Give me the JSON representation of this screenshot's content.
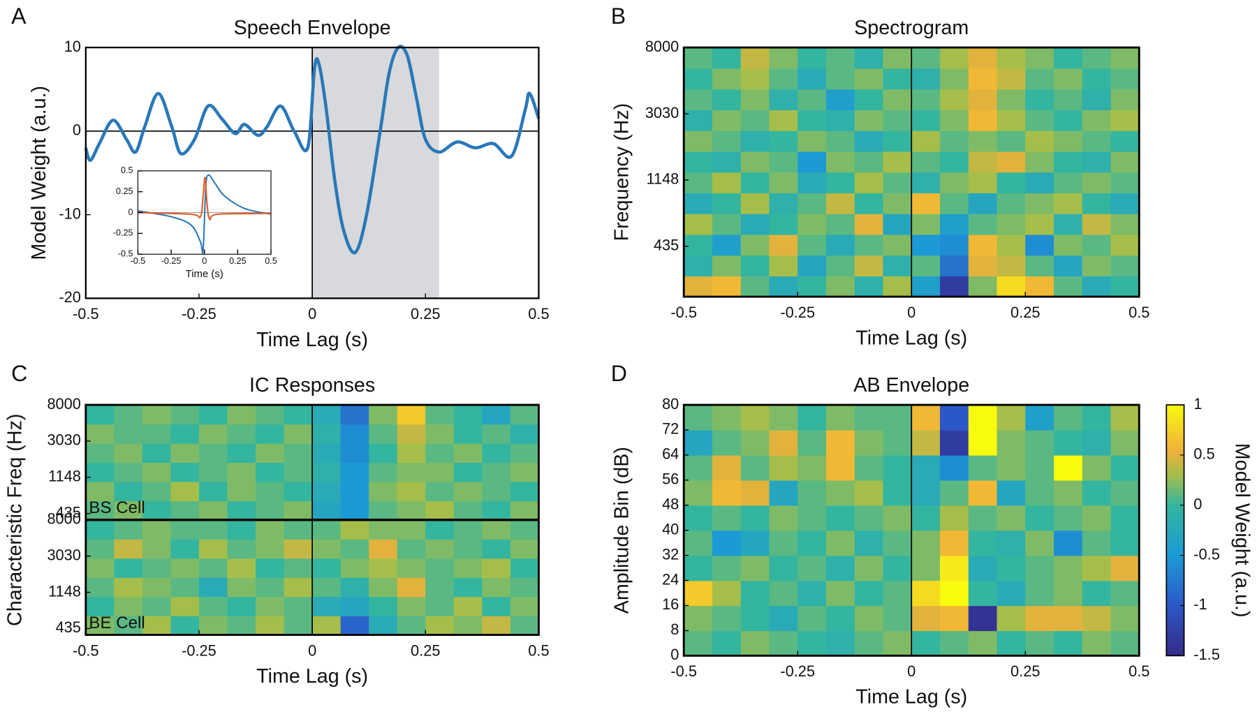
{
  "chart_data": [
    {
      "type": "line",
      "panel_label": "A",
      "title": "Speech Envelope",
      "xlabel": "Time Lag (s)",
      "ylabel": "Model Weight (a.u.)",
      "xlim": [
        -0.5,
        0.5
      ],
      "ylim": [
        -20,
        10
      ],
      "xticks": [
        -0.5,
        -0.25,
        0,
        0.25,
        0.5
      ],
      "yticks": [
        -20,
        -10,
        0,
        10
      ],
      "shade": [
        0,
        0.28
      ],
      "x": [
        -0.5,
        -0.49,
        -0.47,
        -0.44,
        -0.41,
        -0.39,
        -0.37,
        -0.34,
        -0.31,
        -0.29,
        -0.26,
        -0.23,
        -0.2,
        -0.17,
        -0.15,
        -0.12,
        -0.1,
        -0.07,
        -0.04,
        -0.01,
        0.005,
        0.015,
        0.03,
        0.05,
        0.07,
        0.095,
        0.12,
        0.15,
        0.17,
        0.19,
        0.21,
        0.23,
        0.25,
        0.28,
        0.32,
        0.36,
        0.4,
        0.44,
        0.47,
        0.48,
        0.5
      ],
      "series": [
        {
          "color": "#2a78b8",
          "values": [
            -2,
            -3.5,
            -1.5,
            1.3,
            -1,
            -2.5,
            0.5,
            4.5,
            0.5,
            -2.7,
            -1,
            3,
            1.5,
            -0.3,
            0.8,
            -0.5,
            0.5,
            3,
            0,
            -2,
            7.5,
            8,
            3,
            -6,
            -12,
            -14.5,
            -10,
            0,
            7,
            10,
            9,
            4,
            -1,
            -2.5,
            -1.3,
            -2,
            -1.5,
            -3,
            2.5,
            4.5,
            1.5
          ]
        }
      ],
      "inset": {
        "type": "line",
        "xlabel": "Time (s)",
        "xlim": [
          -0.5,
          0.5
        ],
        "ylim": [
          -0.5,
          0.5
        ],
        "xticks": [
          -0.5,
          -0.25,
          0,
          0.25,
          0.5
        ],
        "yticks": [
          -0.5,
          -0.25,
          0,
          0.25,
          0.5
        ],
        "series": [
          {
            "color": "#2a78b8",
            "x": [
              -0.5,
              -0.25,
              -0.1,
              -0.03,
              -0.01,
              0.01,
              0.03,
              0.08,
              0.15,
              0.3,
              0.5
            ],
            "values": [
              0.02,
              -0.05,
              -0.15,
              -0.35,
              -0.45,
              0.3,
              0.45,
              0.35,
              0.2,
              0.05,
              -0.02
            ]
          },
          {
            "color": "#e05a2b",
            "x": [
              -0.5,
              -0.1,
              -0.03,
              -0.01,
              0.005,
              0.02,
              0.04,
              0.1,
              0.5
            ],
            "values": [
              0,
              -0.02,
              -0.05,
              0.2,
              0.42,
              0.1,
              -0.08,
              -0.02,
              -0.01
            ]
          }
        ]
      }
    },
    {
      "type": "heatmap",
      "panel_label": "B",
      "title": "Spectrogram",
      "xlabel": "Time Lag (s)",
      "ylabel": "Frequency (Hz)",
      "xlim": [
        -0.5,
        0.5
      ],
      "ylim": [
        208,
        8000
      ],
      "log_y": true,
      "xticks": [
        -0.5,
        -0.25,
        0,
        0.25,
        0.5
      ],
      "yticks": [
        435,
        1148,
        3030,
        8000
      ],
      "values": [
        [
          0.5,
          0.6,
          0.1,
          -0.2,
          0,
          0.2,
          -0.1,
          0.3,
          -0.4,
          -1.3,
          0.2,
          0.8,
          0.6,
          0.1,
          -0.2,
          0
        ],
        [
          -0.1,
          0.2,
          0,
          0.3,
          -0.3,
          0.1,
          0.4,
          -0.1,
          0.1,
          -0.8,
          0.5,
          0.4,
          0.1,
          -0.3,
          0.2,
          0.1
        ],
        [
          0,
          -0.4,
          0.2,
          0.5,
          0.1,
          -0.2,
          0.1,
          0.2,
          -0.5,
          -0.6,
          0.6,
          0.3,
          -0.6,
          0.2,
          0.1,
          0.3
        ],
        [
          0.3,
          0.1,
          -0.2,
          0,
          0.2,
          0.1,
          0.5,
          -0.3,
          0.2,
          -0.4,
          0.1,
          0.2,
          0.3,
          -0.1,
          0.4,
          0.2
        ],
        [
          -0.2,
          0,
          0.3,
          -0.1,
          0.1,
          0.4,
          0,
          0.2,
          0.6,
          0.1,
          -0.3,
          0.1,
          0.2,
          0.3,
          0,
          -0.2
        ],
        [
          0.1,
          0.3,
          0,
          0.2,
          -0.2,
          0,
          0.3,
          0.1,
          -0.1,
          0.2,
          0.3,
          0,
          -0.2,
          0.1,
          0.2,
          0.1
        ],
        [
          0,
          -0.1,
          0.2,
          0.1,
          -0.5,
          0.2,
          0.1,
          0.3,
          0.1,
          0,
          0.4,
          0.5,
          0.2,
          0,
          -0.1,
          0.2
        ],
        [
          0.2,
          0.1,
          -0.1,
          0,
          0.2,
          0.1,
          -0.2,
          0,
          0.3,
          0.1,
          0.2,
          0.1,
          0.3,
          0.2,
          0.1,
          0
        ],
        [
          -0.1,
          0.2,
          0.1,
          0.3,
          0,
          -0.1,
          0.2,
          0.1,
          0,
          0.2,
          0.6,
          0.3,
          0.1,
          0,
          0.2,
          0.3
        ],
        [
          0.1,
          0,
          0.2,
          -0.1,
          0.1,
          -0.4,
          0,
          0.2,
          0.1,
          0.3,
          0.5,
          0.2,
          0,
          0.1,
          -0.1,
          0.2
        ],
        [
          0,
          0.2,
          0.3,
          0.1,
          -0.2,
          0.1,
          0.2,
          0,
          -0.1,
          0.2,
          0.6,
          0.4,
          0.1,
          0.2,
          0,
          0.1
        ],
        [
          0.1,
          0,
          0.4,
          0.2,
          0,
          0.1,
          -0.1,
          0.2,
          0.1,
          0.3,
          0.5,
          0.3,
          0.2,
          0,
          0.1,
          0.2
        ]
      ]
    },
    {
      "type": "heatmap",
      "panel_label": "C",
      "title": "IC Responses",
      "xlabel": "Time Lag (s)",
      "ylabel": "Characteristic Freq (Hz)",
      "xlim": [
        -0.5,
        0.5
      ],
      "ylim": [
        367,
        8000
      ],
      "log_y": true,
      "xticks": [
        -0.5,
        -0.25,
        0,
        0.25,
        0.5
      ],
      "yticks": [
        435,
        1148,
        3030,
        8000
      ],
      "panels": [
        {
          "label": "BS Cell",
          "values": [
            [
              0.1,
              0.2,
              0,
              0.1,
              0.2,
              0,
              0.1,
              0.2,
              -0.3,
              -0.5,
              0.1,
              0.2,
              0.3,
              0.1,
              0,
              0.2
            ],
            [
              0.2,
              0,
              0.1,
              0.3,
              0,
              0.2,
              0.1,
              0,
              -0.2,
              -0.5,
              0.2,
              0.3,
              0.1,
              0.2,
              0.1,
              0
            ],
            [
              0,
              0.1,
              0.2,
              0,
              0.1,
              0.2,
              0,
              0.1,
              -0.1,
              -0.5,
              0.1,
              0.2,
              0.2,
              0,
              0.1,
              0.2
            ],
            [
              0.1,
              0.2,
              0,
              0.2,
              0.1,
              0,
              0.2,
              0.1,
              -0.2,
              -0.6,
              0,
              0.3,
              0.1,
              0.2,
              0,
              0.1
            ],
            [
              0.2,
              0.1,
              0.1,
              0,
              0.2,
              0.1,
              0,
              0.2,
              -0.1,
              -0.6,
              0.1,
              0.4,
              0.2,
              0,
              0.1,
              -0.1
            ],
            [
              0,
              0.1,
              0.2,
              0.1,
              0,
              0.2,
              0.1,
              0,
              -0.2,
              -0.8,
              0.2,
              0.7,
              0.1,
              0,
              -0.3,
              0.1
            ]
          ]
        },
        {
          "label": "BE Cell",
          "values": [
            [
              0.2,
              0.1,
              0.3,
              0,
              0.2,
              0.1,
              0.3,
              0.1,
              0.3,
              -0.9,
              -0.2,
              0.1,
              0.3,
              0.2,
              0.4,
              0.1
            ],
            [
              0,
              0.2,
              0.1,
              0.3,
              0.1,
              0,
              0.2,
              0.1,
              -0.2,
              -0.3,
              0,
              0.2,
              0.1,
              0.3,
              0,
              0.2
            ],
            [
              0.1,
              0.3,
              0.2,
              0.1,
              -0.2,
              0.2,
              0.1,
              0.3,
              0.1,
              -0.1,
              0.2,
              0.5,
              0.1,
              0,
              0.2,
              0.1
            ],
            [
              0.2,
              0,
              0.1,
              0.2,
              0.1,
              0.3,
              0,
              0.1,
              0,
              0.2,
              0.3,
              0.2,
              0.1,
              0.2,
              0.3,
              0
            ],
            [
              0.1,
              0.4,
              0.2,
              0,
              0.3,
              0.1,
              0.2,
              0.4,
              0.2,
              0.1,
              0.5,
              0.1,
              0.2,
              0.1,
              0,
              0.2
            ],
            [
              0,
              0.1,
              0.2,
              0.1,
              0.1,
              0,
              0.2,
              0.1,
              0.1,
              0.3,
              0.2,
              0.2,
              0,
              0.1,
              0.2,
              0.1
            ]
          ]
        }
      ]
    },
    {
      "type": "heatmap",
      "panel_label": "D",
      "title": "AB Envelope",
      "xlabel": "Time Lag (s)",
      "ylabel": "Amplitude Bin (dB)",
      "xlim": [
        -0.5,
        0.5
      ],
      "ylim": [
        0,
        80
      ],
      "xticks": [
        -0.5,
        -0.25,
        0,
        0.25,
        0.5
      ],
      "yticks": [
        0,
        8,
        16,
        24,
        32,
        40,
        48,
        56,
        64,
        72,
        80
      ],
      "values": [
        [
          0.1,
          0,
          0.2,
          0.1,
          0,
          -0.1,
          0.1,
          0.2,
          0,
          0.1,
          0.2,
          0,
          0.1,
          0,
          0.2,
          0.1
        ],
        [
          0.2,
          0.1,
          0,
          -0.2,
          0.1,
          0,
          0.2,
          0.1,
          0.5,
          0.6,
          -1.4,
          0.3,
          0.5,
          0.5,
          0.4,
          0.2
        ],
        [
          0.7,
          0.3,
          0,
          0.1,
          -0.1,
          0.2,
          0,
          0.1,
          0.8,
          1,
          0,
          -0.2,
          0.1,
          0.2,
          0,
          0.1
        ],
        [
          0,
          0.1,
          0.2,
          0,
          0.1,
          -0.1,
          0.2,
          0,
          0.2,
          0.9,
          -0.2,
          0,
          0.1,
          0.2,
          0.3,
          0.5
        ],
        [
          0.1,
          -0.5,
          -0.3,
          0.1,
          0,
          0.2,
          -0.1,
          0.1,
          0.2,
          0.6,
          0,
          -0.1,
          0.2,
          -0.6,
          0.1,
          0
        ],
        [
          0,
          0.1,
          0,
          0.2,
          0.1,
          0,
          0.1,
          0.2,
          0,
          0.3,
          0.1,
          0.2,
          0,
          0.1,
          0.2,
          0
        ],
        [
          0.2,
          0.6,
          0.5,
          -0.3,
          0.1,
          0.2,
          0.3,
          0,
          -0.2,
          0.1,
          0.6,
          -0.3,
          0.1,
          0.2,
          0,
          0.1
        ],
        [
          0.1,
          0.5,
          0.1,
          0.3,
          0.2,
          0.6,
          0.1,
          0,
          -0.2,
          -0.6,
          0.1,
          0.2,
          0.1,
          1,
          0.2,
          0
        ],
        [
          -0.3,
          0.1,
          0.2,
          0.5,
          0.1,
          0.6,
          0.2,
          0.1,
          0.4,
          -1.3,
          1,
          0.2,
          0.1,
          0,
          -0.1,
          0.2
        ],
        [
          0.1,
          0.2,
          0.3,
          0.2,
          0,
          0.2,
          0.1,
          0.1,
          0.6,
          -1,
          1,
          0.3,
          -0.4,
          0.1,
          0,
          0.3
        ]
      ],
      "colorbar": {
        "label": "Model Weight (a.u.)",
        "ylim": [
          -1.5,
          1
        ],
        "yticks": [
          -1.5,
          -1,
          -0.5,
          0,
          0.5,
          1
        ],
        "colormap": [
          {
            "value": -1.5,
            "color": "#352a87"
          },
          {
            "value": -1,
            "color": "#2c58c7"
          },
          {
            "value": -0.5,
            "color": "#1c9ad6"
          },
          {
            "value": 0,
            "color": "#34b59f"
          },
          {
            "value": 0.3,
            "color": "#a5be4a"
          },
          {
            "value": 0.55,
            "color": "#f0b03a"
          },
          {
            "value": 1,
            "color": "#f9fb0e"
          }
        ]
      }
    }
  ]
}
